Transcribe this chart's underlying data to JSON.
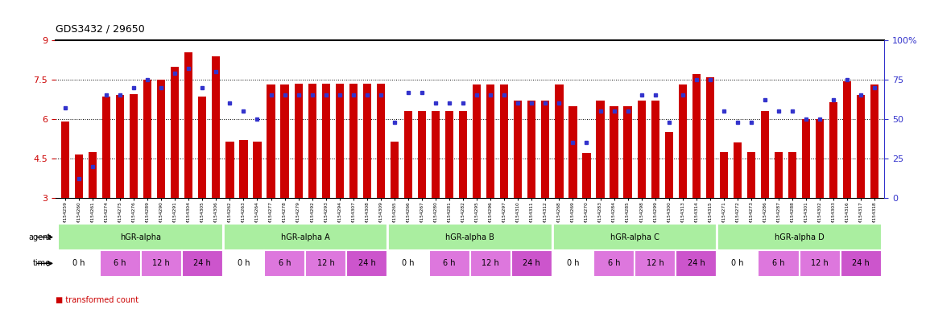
{
  "title": "GDS3432 / 29650",
  "samples": [
    "GSM154259",
    "GSM154260",
    "GSM154261",
    "GSM154274",
    "GSM154275",
    "GSM154276",
    "GSM154289",
    "GSM154290",
    "GSM154291",
    "GSM154304",
    "GSM154305",
    "GSM154306",
    "GSM154262",
    "GSM154263",
    "GSM154264",
    "GSM154277",
    "GSM154278",
    "GSM154279",
    "GSM154292",
    "GSM154293",
    "GSM154294",
    "GSM154307",
    "GSM154308",
    "GSM154309",
    "GSM154265",
    "GSM154266",
    "GSM154267",
    "GSM154280",
    "GSM154281",
    "GSM154282",
    "GSM154295",
    "GSM154296",
    "GSM154297",
    "GSM154310",
    "GSM154311",
    "GSM154312",
    "GSM154268",
    "GSM154269",
    "GSM154270",
    "GSM154283",
    "GSM154284",
    "GSM154285",
    "GSM154298",
    "GSM154299",
    "GSM154300",
    "GSM154313",
    "GSM154314",
    "GSM154315",
    "GSM154271",
    "GSM154272",
    "GSM154273",
    "GSM154286",
    "GSM154287",
    "GSM154288",
    "GSM154301",
    "GSM154302",
    "GSM154303",
    "GSM154316",
    "GSM154317",
    "GSM154318"
  ],
  "red_values": [
    5.9,
    4.65,
    4.75,
    6.85,
    6.9,
    6.95,
    7.5,
    7.5,
    8.0,
    8.55,
    6.85,
    8.4,
    5.15,
    5.2,
    5.15,
    7.3,
    7.3,
    7.35,
    7.35,
    7.35,
    7.35,
    7.35,
    7.35,
    7.35,
    5.15,
    6.3,
    6.3,
    6.3,
    6.3,
    6.3,
    7.3,
    7.3,
    7.3,
    6.7,
    6.7,
    6.7,
    7.3,
    6.5,
    4.7,
    6.7,
    6.5,
    6.5,
    6.7,
    6.7,
    5.5,
    7.3,
    7.7,
    7.6,
    4.75,
    5.1,
    4.75,
    6.3,
    4.75,
    4.75,
    6.0,
    6.0,
    6.65,
    7.45,
    6.9,
    7.3
  ],
  "blue_values": [
    57,
    12,
    20,
    65,
    65,
    70,
    75,
    70,
    79,
    82,
    70,
    80,
    60,
    55,
    50,
    65,
    65,
    65,
    65,
    65,
    65,
    65,
    65,
    65,
    48,
    67,
    67,
    60,
    60,
    60,
    65,
    65,
    65,
    60,
    60,
    60,
    60,
    35,
    35,
    55,
    55,
    55,
    65,
    65,
    48,
    65,
    75,
    75,
    55,
    48,
    48,
    62,
    55,
    55,
    50,
    50,
    62,
    75,
    65,
    70
  ],
  "agents": [
    {
      "label": "hGR-alpha",
      "start": 0,
      "end": 12
    },
    {
      "label": "hGR-alpha A",
      "start": 12,
      "end": 24
    },
    {
      "label": "hGR-alpha B",
      "start": 24,
      "end": 36
    },
    {
      "label": "hGR-alpha C",
      "start": 36,
      "end": 48
    },
    {
      "label": "hGR-alpha D",
      "start": 48,
      "end": 60
    }
  ],
  "time_labels": [
    "0 h",
    "6 h",
    "12 h",
    "24 h"
  ],
  "time_colors": [
    "#ffffff",
    "#DD77DD",
    "#DD77DD",
    "#CC55CC"
  ],
  "agent_color": "#AAEEA0",
  "ylim_left": [
    3,
    9
  ],
  "ylim_right": [
    0,
    100
  ],
  "yticks_left": [
    3,
    4.5,
    6,
    7.5,
    9
  ],
  "yticks_right": [
    0,
    25,
    50,
    75,
    100
  ],
  "grid_values": [
    4.5,
    6.0,
    7.5
  ],
  "bar_color": "#CC0000",
  "dot_color": "#3333CC",
  "left_axis_color": "#CC0000",
  "right_axis_color": "#3333CC"
}
